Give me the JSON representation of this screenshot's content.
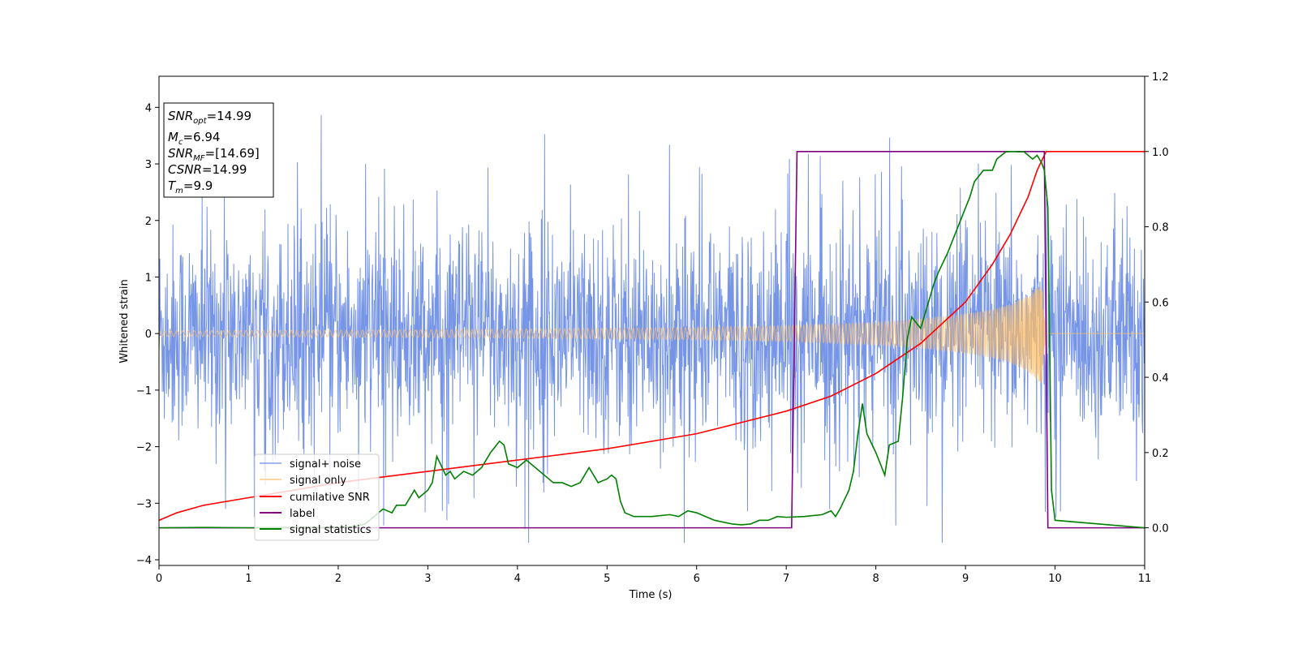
{
  "chart_data": {
    "type": "line",
    "xlabel": "Time (s)",
    "ylabel": "Whitened strain",
    "xlim": [
      0,
      11
    ],
    "ylim": [
      -4.1,
      4.55
    ],
    "ylim_right": [
      -0.1,
      1.2
    ],
    "x_ticks": [
      0,
      1,
      2,
      3,
      4,
      5,
      6,
      7,
      8,
      9,
      10,
      11
    ],
    "y_ticks_left": [
      -4,
      -3,
      -2,
      -1,
      0,
      1,
      2,
      3,
      4
    ],
    "y_ticks_right": [
      0.0,
      0.2,
      0.4,
      0.6,
      0.8,
      1.0,
      1.2
    ],
    "grid": false,
    "legend_position": "lower-left",
    "info_box": {
      "lines": [
        {
          "main": "SNR",
          "sub": "opt",
          "value": "=14.99"
        },
        {
          "main": "M",
          "sub": "c",
          "value": "=6.94"
        },
        {
          "main": "SNR",
          "sub": "MF",
          "value": "=[14.69]"
        },
        {
          "main": "CSNR",
          "sub": "",
          "value": "=14.99"
        },
        {
          "main": "T",
          "sub": "m",
          "value": "=9.9"
        }
      ]
    },
    "series": [
      {
        "name": "signal+ noise",
        "color": "#6f8fe6",
        "axis": "left",
        "description_stats": {
          "typical_range": [
            -2.5,
            2.5
          ],
          "peak_max": 4.15,
          "peak_min": -3.7,
          "t_start": 0,
          "t_end": 11
        }
      },
      {
        "name": "signal only",
        "color": "#ffbf66",
        "axis": "left",
        "envelope": {
          "t": [
            0,
            2,
            4,
            6,
            7,
            8,
            8.5,
            9,
            9.3,
            9.5,
            9.7,
            9.85,
            9.9,
            11
          ],
          "amp": [
            0.05,
            0.06,
            0.08,
            0.11,
            0.14,
            0.2,
            0.26,
            0.35,
            0.43,
            0.52,
            0.68,
            0.9,
            0.0,
            0.0
          ]
        }
      },
      {
        "name": "cumilative SNR",
        "color": "#ff0000",
        "axis": "right",
        "x": [
          0,
          0.2,
          0.5,
          1,
          2,
          3,
          4,
          5,
          6,
          7,
          7.5,
          8,
          8.5,
          9,
          9.3,
          9.5,
          9.7,
          9.8,
          9.9,
          11
        ],
        "y": [
          0.02,
          0.04,
          0.06,
          0.08,
          0.12,
          0.15,
          0.18,
          0.21,
          0.25,
          0.31,
          0.35,
          0.41,
          0.49,
          0.6,
          0.7,
          0.78,
          0.88,
          0.95,
          1.0,
          1.0
        ]
      },
      {
        "name": "label",
        "color": "#800080",
        "axis": "right",
        "x": [
          0,
          7.06,
          7.12,
          9.88,
          9.92,
          11
        ],
        "y": [
          0,
          0,
          1,
          1,
          0,
          0
        ]
      },
      {
        "name": "signal statistics",
        "color": "#008000",
        "axis": "right",
        "x": [
          0,
          0.5,
          1,
          1.5,
          2,
          2.1,
          2.2,
          2.3,
          2.4,
          2.5,
          2.6,
          2.65,
          2.75,
          2.85,
          2.9,
          3.0,
          3.05,
          3.1,
          3.2,
          3.25,
          3.3,
          3.4,
          3.5,
          3.6,
          3.7,
          3.8,
          3.85,
          3.9,
          4.0,
          4.1,
          4.15,
          4.2,
          4.3,
          4.4,
          4.5,
          4.6,
          4.7,
          4.8,
          4.85,
          4.9,
          5.0,
          5.05,
          5.1,
          5.15,
          5.2,
          5.3,
          5.5,
          5.7,
          5.8,
          5.9,
          6.0,
          6.1,
          6.2,
          6.3,
          6.4,
          6.5,
          6.6,
          6.7,
          6.8,
          6.9,
          7.0,
          7.2,
          7.4,
          7.5,
          7.55,
          7.6,
          7.7,
          7.75,
          7.8,
          7.85,
          7.9,
          8.0,
          8.1,
          8.15,
          8.25,
          8.3,
          8.35,
          8.4,
          8.5,
          8.55,
          8.65,
          8.7,
          8.8,
          8.9,
          9.0,
          9.05,
          9.1,
          9.2,
          9.3,
          9.35,
          9.45,
          9.5,
          9.55,
          9.6,
          9.65,
          9.7,
          9.75,
          9.8,
          9.85,
          9.88,
          9.92,
          9.96,
          10.0,
          11
        ],
        "y": [
          0.0,
          0.001,
          0.0,
          0.001,
          0.001,
          0.002,
          0.005,
          0.01,
          0.03,
          0.05,
          0.04,
          0.06,
          0.06,
          0.1,
          0.08,
          0.1,
          0.12,
          0.19,
          0.14,
          0.15,
          0.13,
          0.15,
          0.14,
          0.16,
          0.2,
          0.23,
          0.22,
          0.17,
          0.16,
          0.18,
          0.17,
          0.16,
          0.14,
          0.12,
          0.12,
          0.11,
          0.12,
          0.16,
          0.14,
          0.12,
          0.13,
          0.14,
          0.13,
          0.07,
          0.04,
          0.03,
          0.03,
          0.035,
          0.03,
          0.045,
          0.04,
          0.03,
          0.02,
          0.015,
          0.01,
          0.008,
          0.01,
          0.02,
          0.02,
          0.03,
          0.028,
          0.03,
          0.035,
          0.045,
          0.03,
          0.05,
          0.1,
          0.15,
          0.25,
          0.33,
          0.25,
          0.2,
          0.14,
          0.22,
          0.23,
          0.35,
          0.5,
          0.56,
          0.53,
          0.57,
          0.65,
          0.68,
          0.73,
          0.79,
          0.85,
          0.88,
          0.92,
          0.95,
          0.95,
          0.98,
          0.999,
          1.0,
          1.0,
          0.999,
          1.0,
          0.99,
          0.98,
          0.99,
          0.97,
          0.95,
          0.85,
          0.1,
          0.02,
          0.0
        ]
      }
    ]
  }
}
